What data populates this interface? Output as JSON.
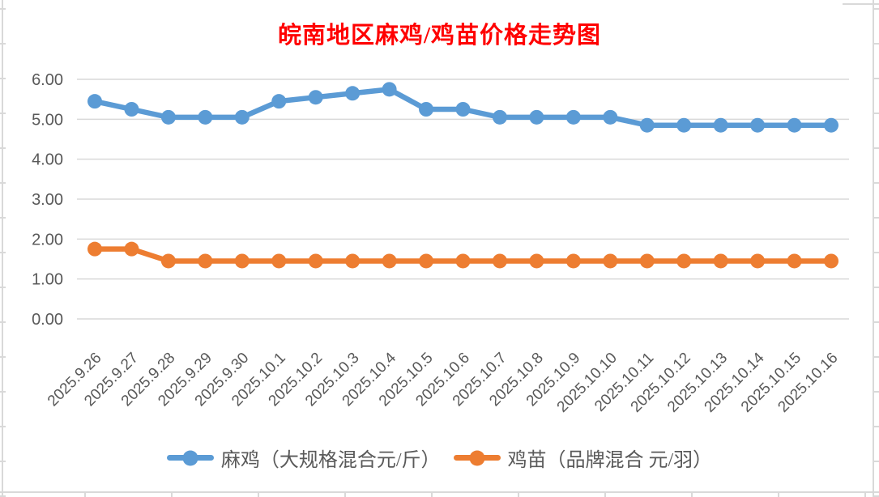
{
  "chart_data": {
    "type": "line",
    "title": "皖南地区麻鸡/鸡苗价格走势图",
    "title_color": "#FF0000",
    "xlabel": "",
    "ylabel": "",
    "ylim": [
      0,
      6
    ],
    "y_ticks": [
      "6.00",
      "5.00",
      "4.00",
      "3.00",
      "2.00",
      "1.00",
      "0.00"
    ],
    "grid": true,
    "legend_position": "bottom",
    "axis_label_color": "#595959",
    "gridline_color": "#D9D9D9",
    "categories": [
      "2025.9.26",
      "2025.9.27",
      "2025.9.28",
      "2025.9.29",
      "2025.9.30",
      "2025.10.1",
      "2025.10.2",
      "2025.10.3",
      "2025.10.4",
      "2025.10.5",
      "2025.10.6",
      "2025.10.7",
      "2025.10.8",
      "2025.10.9",
      "2025.10.10",
      "2025.10.11",
      "2025.10.12",
      "2025.10.13",
      "2025.10.14",
      "2025.10.15",
      "2025.10.16"
    ],
    "series": [
      {
        "name": "麻鸡（大规格混合元/斤）",
        "color": "#5B9BD5",
        "values": [
          5.45,
          5.25,
          5.05,
          5.05,
          5.05,
          5.45,
          5.55,
          5.65,
          5.75,
          5.25,
          5.25,
          5.05,
          5.05,
          5.05,
          5.05,
          4.85,
          4.85,
          4.85,
          4.85,
          4.85,
          4.85
        ]
      },
      {
        "name": "鸡苗（品牌混合 元/羽）",
        "color": "#ED7D31",
        "values": [
          1.75,
          1.75,
          1.45,
          1.45,
          1.45,
          1.45,
          1.45,
          1.45,
          1.45,
          1.45,
          1.45,
          1.45,
          1.45,
          1.45,
          1.45,
          1.45,
          1.45,
          1.45,
          1.45,
          1.45,
          1.45
        ]
      }
    ]
  }
}
